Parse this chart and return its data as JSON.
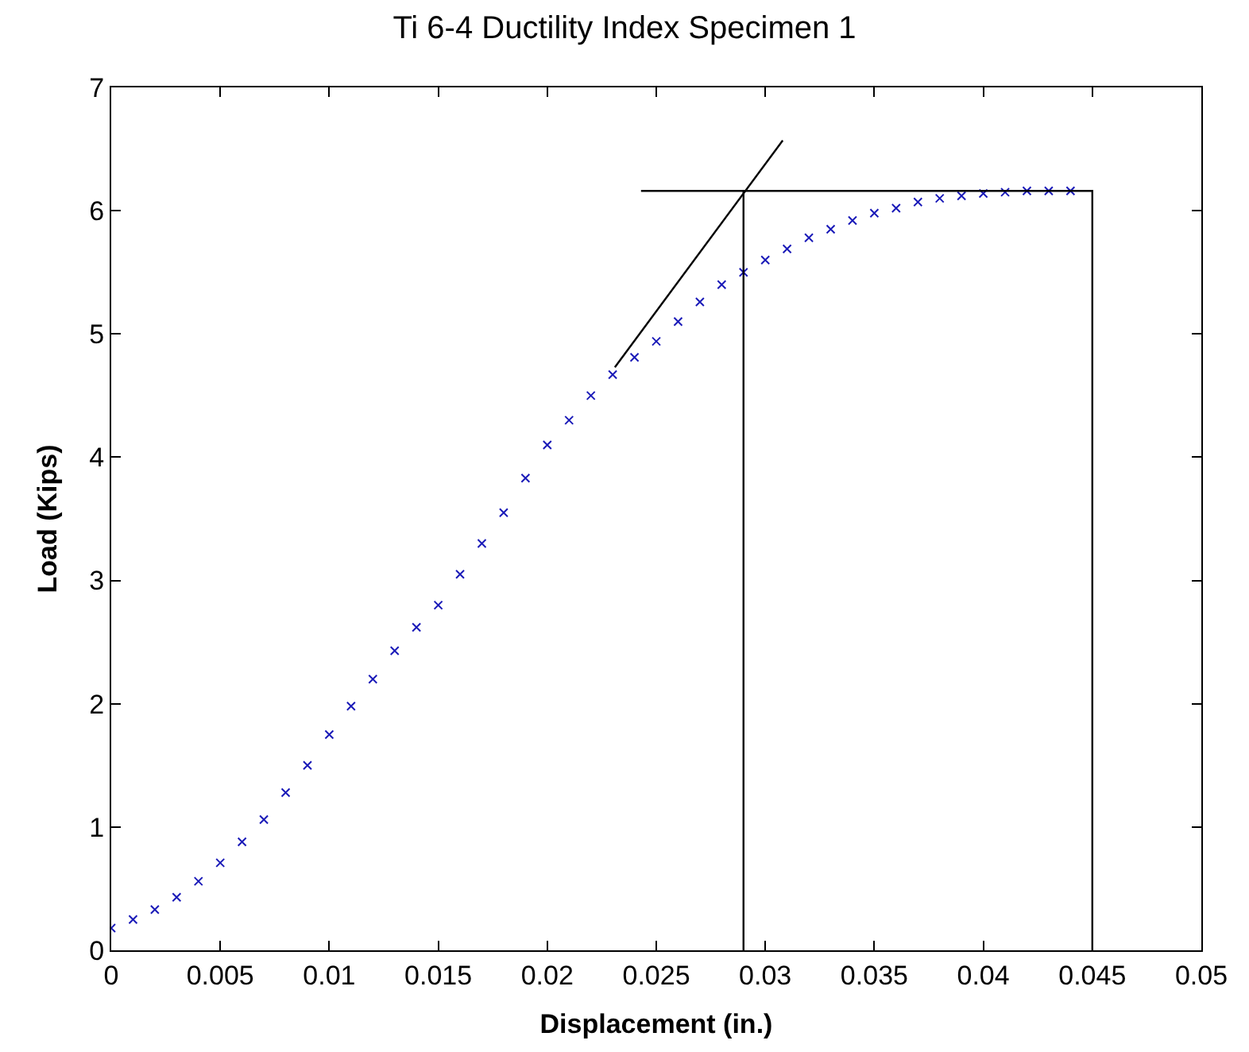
{
  "chart_data": {
    "type": "scatter",
    "title": "Ti 6-4 Ductility Index Specimen 1",
    "xlabel": "Displacement (in.)",
    "ylabel": "Load (Kips)",
    "xlim": [
      0,
      0.05
    ],
    "xticks": [
      0,
      0.005,
      0.01,
      0.015,
      0.02,
      0.025,
      0.03,
      0.035,
      0.04,
      0.045,
      0.05
    ],
    "ylim": [
      0,
      7
    ],
    "yticks": [
      0,
      1,
      2,
      3,
      4,
      5,
      6,
      7
    ],
    "marker": "cross",
    "series": [
      {
        "color": "#1a1ab8",
        "x": [
          0,
          0.001,
          0.002,
          0.003,
          0.004,
          0.005,
          0.006,
          0.007,
          0.008,
          0.009,
          0.01,
          0.011,
          0.012,
          0.013,
          0.014,
          0.015,
          0.016,
          0.017,
          0.018,
          0.019,
          0.02,
          0.021,
          0.022,
          0.023,
          0.024,
          0.025,
          0.026,
          0.027,
          0.028,
          0.029,
          0.03,
          0.031,
          0.032,
          0.033,
          0.034,
          0.035,
          0.036,
          0.037,
          0.038,
          0.039,
          0.04,
          0.041,
          0.042,
          0.043,
          0.044
        ],
        "values": [
          0.18,
          0.25,
          0.33,
          0.43,
          0.56,
          0.71,
          0.88,
          1.06,
          1.28,
          1.5,
          1.75,
          1.98,
          2.2,
          2.43,
          2.62,
          2.8,
          3.05,
          3.3,
          3.55,
          3.83,
          4.1,
          4.3,
          4.5,
          4.67,
          4.81,
          4.94,
          5.1,
          5.26,
          5.4,
          5.5,
          5.6,
          5.69,
          5.78,
          5.85,
          5.92,
          5.98,
          6.02,
          6.07,
          6.1,
          6.12,
          6.14,
          6.15,
          6.16,
          6.16,
          6.16
        ]
      },
      {
        "type": "line",
        "color": "#000000",
        "marker": "none",
        "x": [
          0.0231,
          0.0308
        ],
        "values": [
          4.73,
          6.57
        ]
      },
      {
        "type": "line",
        "color": "#000000",
        "marker": "none",
        "x": [
          0.0243,
          0.045,
          0.045
        ],
        "values": [
          6.16,
          6.16,
          0
        ]
      },
      {
        "type": "line",
        "color": "#000000",
        "marker": "none",
        "x": [
          0.029,
          0.029
        ],
        "values": [
          0,
          6.16
        ]
      }
    ]
  }
}
